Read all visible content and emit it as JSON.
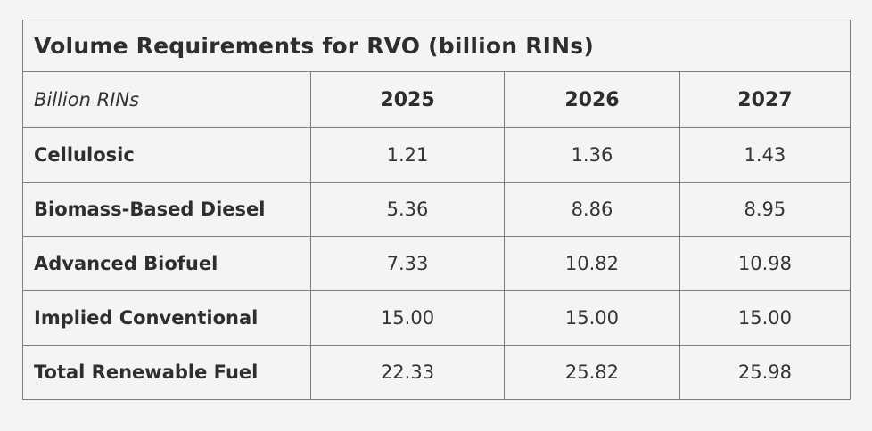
{
  "table": {
    "title": "Volume Requirements for RVO (billion RINs)",
    "unit_label": "Billion RINs",
    "years": [
      "2025",
      "2026",
      "2027"
    ],
    "rows": [
      {
        "label": "Cellulosic",
        "values": [
          "1.21",
          "1.36",
          "1.43"
        ]
      },
      {
        "label": "Biomass-Based Diesel",
        "values": [
          "5.36",
          "8.86",
          "8.95"
        ]
      },
      {
        "label": "Advanced Biofuel",
        "values": [
          "7.33",
          "10.82",
          "10.98"
        ]
      },
      {
        "label": "Implied Conventional",
        "values": [
          "15.00",
          "15.00",
          "15.00"
        ]
      },
      {
        "label": "Total Renewable Fuel",
        "values": [
          "22.33",
          "25.82",
          "25.98"
        ]
      }
    ]
  },
  "colors": {
    "page_background": "#f5f5f5",
    "cell_background": "#f4f4f4",
    "border": "#7d7d7d",
    "text": "#2e2e2e"
  },
  "chart_data": {
    "type": "table",
    "title": "Volume Requirements for RVO (billion RINs)",
    "unit": "Billion RINs",
    "categories": [
      "2025",
      "2026",
      "2027"
    ],
    "series": [
      {
        "name": "Cellulosic",
        "values": [
          1.21,
          1.36,
          1.43
        ]
      },
      {
        "name": "Biomass-Based Diesel",
        "values": [
          5.36,
          8.86,
          8.95
        ]
      },
      {
        "name": "Advanced Biofuel",
        "values": [
          7.33,
          10.82,
          10.98
        ]
      },
      {
        "name": "Implied Conventional",
        "values": [
          15.0,
          15.0,
          15.0
        ]
      },
      {
        "name": "Total Renewable Fuel",
        "values": [
          22.33,
          25.82,
          25.98
        ]
      }
    ]
  }
}
